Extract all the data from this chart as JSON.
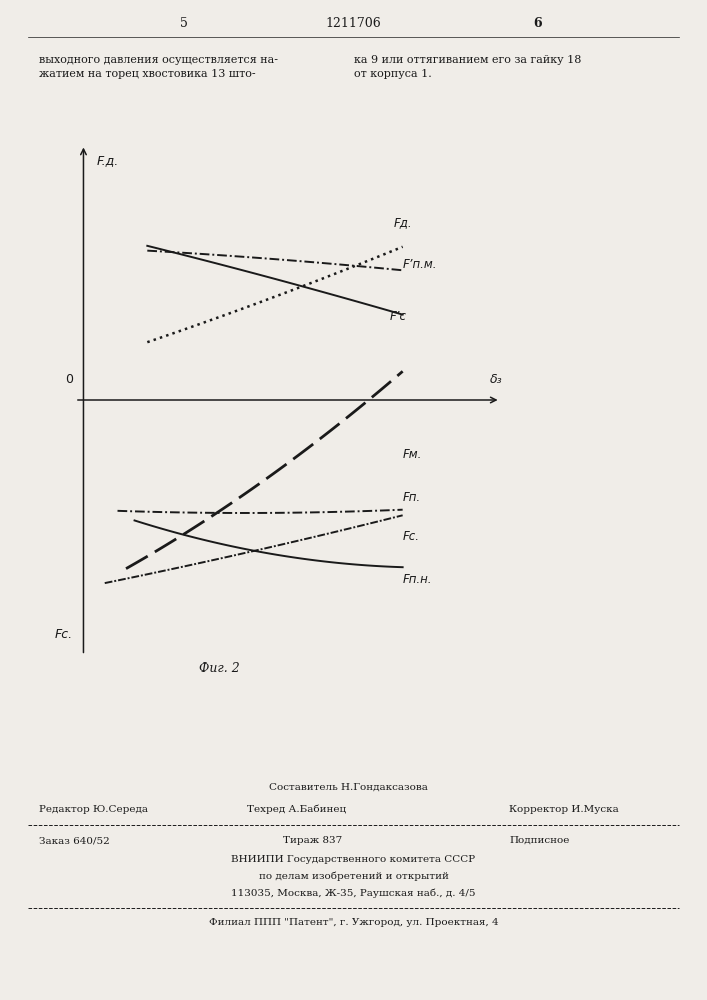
{
  "page_title": "1211706",
  "page_number_left": "5",
  "page_number_right": "6",
  "top_text_left": "выходного давления осуществляется на-\nжатием на торец хвостовика 13 што-",
  "top_text_right": "ка 9 или оттягиванием его за гайку 18\nот корпуса 1.",
  "fig_caption": "Фиг. 2",
  "y_axis_label": "F.д.",
  "x_axis_label": "δ₃",
  "origin_label": "0",
  "y_bottom_label": "Fc.",
  "label_Fd": "Fд.",
  "label_Fpnm": "F’п.м.",
  "label_Fpc": "F’c",
  "label_FM": "Fм.",
  "label_Fp": "Fп.",
  "label_Fc": "Fc.",
  "label_Fpn": "Fп.н.",
  "bg_color": "#f0ede8",
  "line_color": "#1a1a1a",
  "footer_sostavitel": "Составитель Н.Гондаксазова",
  "footer_redaktor": "Редактор Ю.Середа",
  "footer_tekhred": "Техред А.Бабинец",
  "footer_korrektor": "Корректор И.Муска",
  "footer_zakaz": "Заказ 640/52",
  "footer_tirazh": "Тираж 837",
  "footer_podpisnoe": "Подписное",
  "footer_vniip1": "ВНИИПИ Государственного комитета СССР",
  "footer_vniip2": "по делам изобретений и открытий",
  "footer_vniip3": "113035, Москва, Ж-35, Раушская наб., д. 4/5",
  "footer_filial": "Филиал ППП \"Патент\", г. Ужгород, ул. Проектная, 4"
}
